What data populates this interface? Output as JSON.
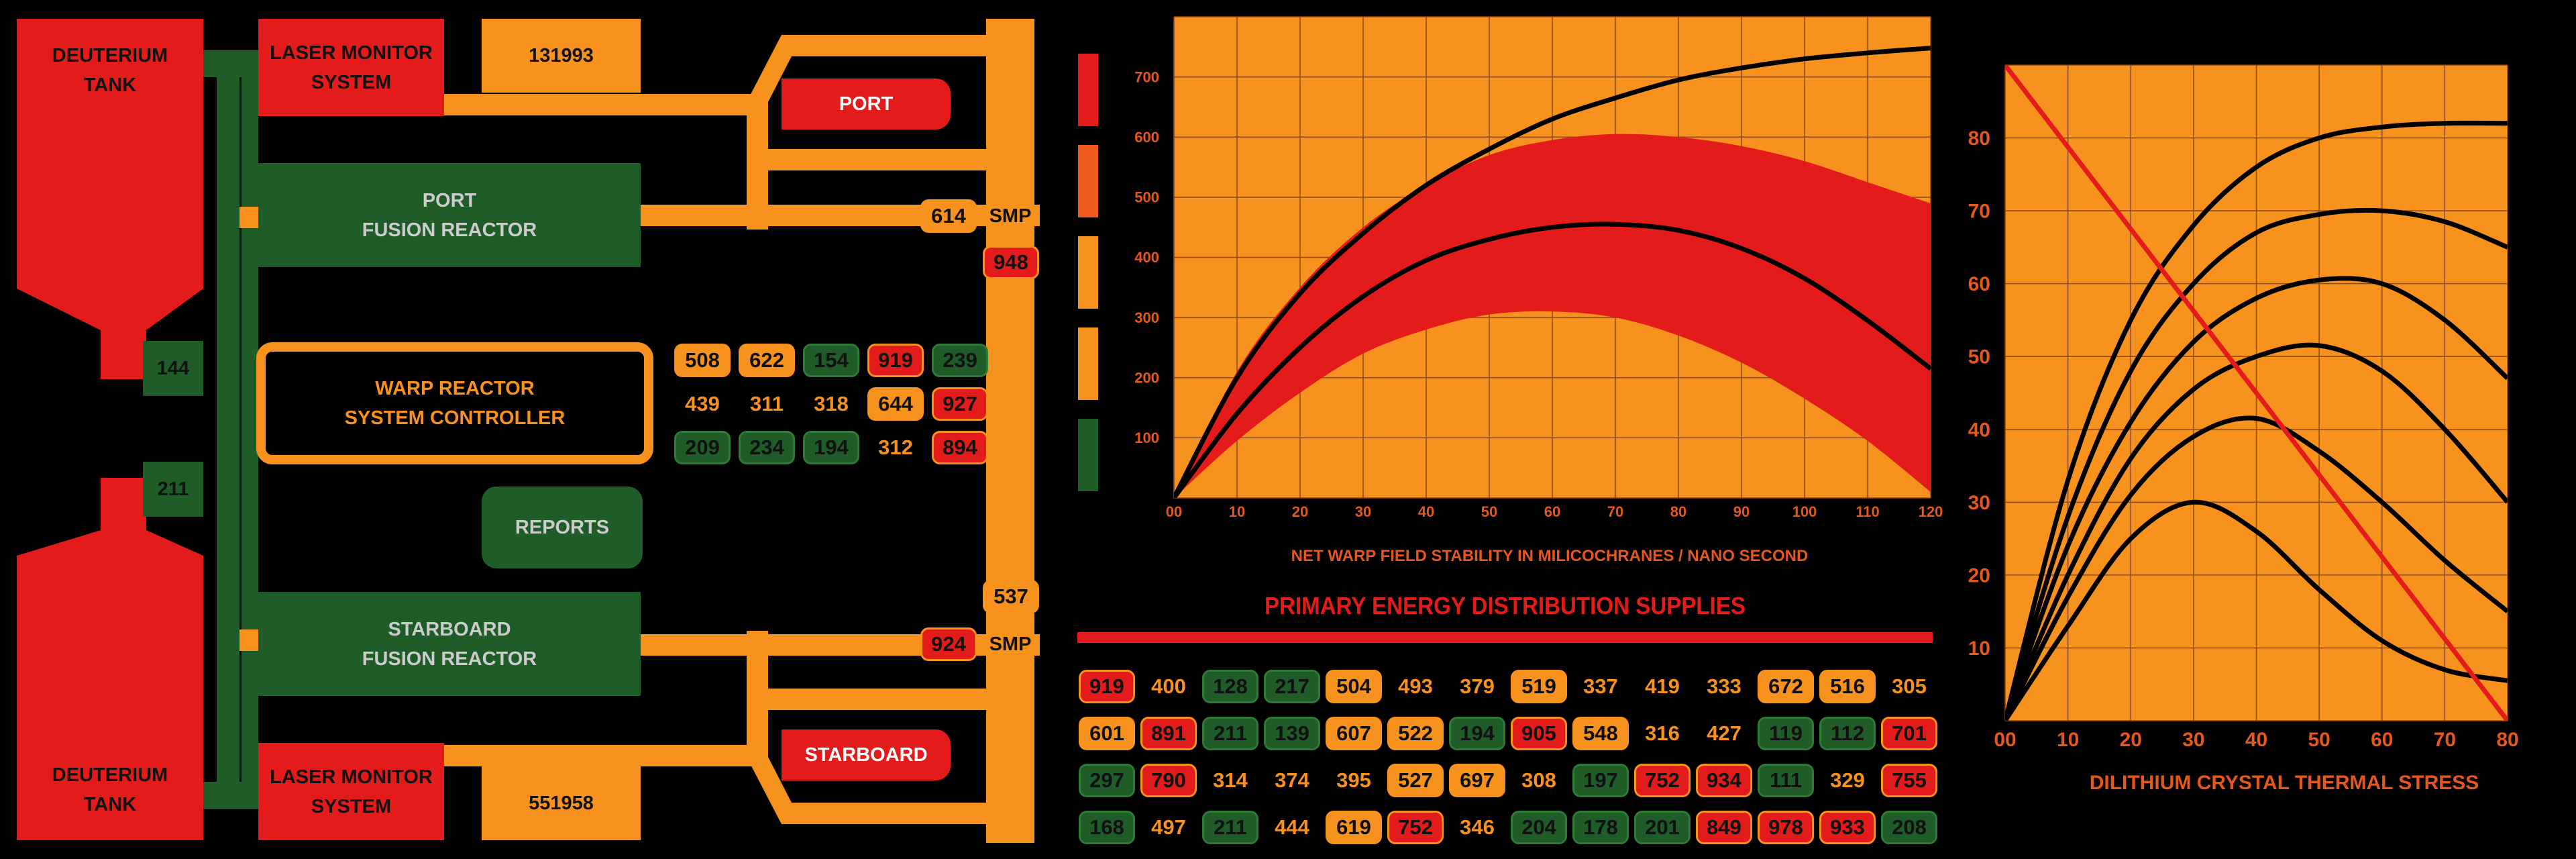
{
  "schematic": {
    "deuterium_top": [
      "DEUTERIUM",
      "TANK"
    ],
    "deuterium_bottom": [
      "DEUTERIUM",
      "TANK"
    ],
    "valve_top": "144",
    "valve_bottom": "211",
    "laser_top": [
      "LASER MONITOR",
      "SYSTEM"
    ],
    "laser_bottom": [
      "LASER MONITOR",
      "SYSTEM"
    ],
    "readout_top": "131993",
    "readout_bottom": "551958",
    "port_reactor": [
      "PORT",
      "FUSION REACTOR"
    ],
    "starboard_reactor": [
      "STARBOARD",
      "FUSION REACTOR"
    ],
    "warp_controller": [
      "WARP REACTOR",
      "SYSTEM CONTROLLER"
    ],
    "reports_button": "REPORTS",
    "port_button": "PORT",
    "starboard_button": "STARBOARD",
    "smp_top": "SMP",
    "smp_bottom": "SMP",
    "smp_top_value": "614",
    "smp_top_alert": "948",
    "smp_bottom_value": "924",
    "smp_bottom_top": "537"
  },
  "status_grid": [
    [
      {
        "v": "508",
        "c": "orange"
      },
      {
        "v": "622",
        "c": "orange"
      },
      {
        "v": "154",
        "c": "green"
      },
      {
        "v": "919",
        "c": "red"
      },
      {
        "v": "239",
        "c": "green"
      }
    ],
    [
      {
        "v": "439",
        "c": "plain"
      },
      {
        "v": "311",
        "c": "plain"
      },
      {
        "v": "318",
        "c": "plain"
      },
      {
        "v": "644",
        "c": "orange"
      },
      {
        "v": "927",
        "c": "red"
      }
    ],
    [
      {
        "v": "209",
        "c": "green"
      },
      {
        "v": "234",
        "c": "green"
      },
      {
        "v": "194",
        "c": "green"
      },
      {
        "v": "312",
        "c": "plain"
      },
      {
        "v": "894",
        "c": "red"
      }
    ]
  ],
  "side_bars": [
    "#e31b1b",
    "#f15a1d",
    "#f7921e",
    "#f7921e",
    "#1f5c27"
  ],
  "chart_data": [
    {
      "type": "line",
      "title": "",
      "xlabel": "NET WARP FIELD STABILITY IN MILICOCHRANES / NANO SECOND",
      "ylabel": "",
      "x_ticks": [
        "00",
        "10",
        "20",
        "30",
        "40",
        "50",
        "60",
        "70",
        "80",
        "90",
        "100",
        "110",
        "120"
      ],
      "y_ticks": [
        "100",
        "200",
        "300",
        "400",
        "500",
        "600",
        "700"
      ],
      "xlim": [
        0,
        120
      ],
      "ylim": [
        0,
        800
      ],
      "grid": true,
      "series": [
        {
          "points": [
            [
              0,
              0
            ],
            [
              10,
              200
            ],
            [
              20,
              340
            ],
            [
              30,
              440
            ],
            [
              40,
              520
            ],
            [
              50,
              580
            ],
            [
              60,
              630
            ],
            [
              70,
              665
            ],
            [
              80,
              695
            ],
            [
              90,
              715
            ],
            [
              100,
              730
            ],
            [
              110,
              740
            ],
            [
              120,
              748
            ]
          ],
          "color": "#000000"
        },
        {
          "points": [
            [
              0,
              0
            ],
            [
              10,
              140
            ],
            [
              20,
              250
            ],
            [
              30,
              335
            ],
            [
              40,
              395
            ],
            [
              50,
              430
            ],
            [
              60,
              450
            ],
            [
              70,
              455
            ],
            [
              80,
              445
            ],
            [
              90,
              415
            ],
            [
              100,
              365
            ],
            [
              110,
              295
            ],
            [
              120,
              215
            ]
          ],
          "color": "#000000"
        }
      ],
      "band": {
        "upper": [
          [
            0,
            0
          ],
          [
            10,
            210
          ],
          [
            20,
            350
          ],
          [
            30,
            450
          ],
          [
            40,
            520
          ],
          [
            50,
            570
          ],
          [
            60,
            595
          ],
          [
            70,
            605
          ],
          [
            80,
            600
          ],
          [
            90,
            585
          ],
          [
            100,
            560
          ],
          [
            110,
            525
          ],
          [
            120,
            490
          ]
        ],
        "lower": [
          [
            0,
            0
          ],
          [
            10,
            95
          ],
          [
            20,
            175
          ],
          [
            30,
            240
          ],
          [
            40,
            280
          ],
          [
            50,
            305
          ],
          [
            60,
            310
          ],
          [
            70,
            300
          ],
          [
            80,
            270
          ],
          [
            90,
            225
          ],
          [
            100,
            165
          ],
          [
            110,
            95
          ],
          [
            120,
            10
          ]
        ],
        "color": "#e31b1b"
      }
    },
    {
      "type": "line",
      "title": "",
      "xlabel": "DILITHIUM CRYSTAL THERMAL STRESS",
      "ylabel": "",
      "x_ticks": [
        "00",
        "10",
        "20",
        "30",
        "40",
        "50",
        "60",
        "70",
        "80"
      ],
      "y_ticks": [
        "10",
        "20",
        "30",
        "40",
        "50",
        "60",
        "70",
        "80"
      ],
      "xlim": [
        0,
        80
      ],
      "ylim": [
        0,
        90
      ],
      "grid": true,
      "series": [
        {
          "points": [
            [
              0,
              0
            ],
            [
              10,
              33
            ],
            [
              20,
              55
            ],
            [
              30,
              68
            ],
            [
              40,
              76
            ],
            [
              50,
              80
            ],
            [
              60,
              81.5
            ],
            [
              70,
              82
            ],
            [
              80,
              82
            ]
          ],
          "color": "#000000"
        },
        {
          "points": [
            [
              0,
              0
            ],
            [
              10,
              28
            ],
            [
              20,
              48
            ],
            [
              30,
              60
            ],
            [
              40,
              67
            ],
            [
              50,
              69.5
            ],
            [
              60,
              70
            ],
            [
              70,
              68.5
            ],
            [
              80,
              65
            ]
          ],
          "color": "#000000"
        },
        {
          "points": [
            [
              0,
              0
            ],
            [
              10,
              24
            ],
            [
              20,
              41
            ],
            [
              30,
              52
            ],
            [
              40,
              58
            ],
            [
              50,
              60.5
            ],
            [
              60,
              60
            ],
            [
              70,
              55
            ],
            [
              80,
              47
            ]
          ],
          "color": "#000000"
        },
        {
          "points": [
            [
              0,
              0
            ],
            [
              10,
              20
            ],
            [
              20,
              36
            ],
            [
              30,
              45.5
            ],
            [
              40,
              50
            ],
            [
              50,
              51.5
            ],
            [
              60,
              48
            ],
            [
              70,
              40
            ],
            [
              80,
              30
            ]
          ],
          "color": "#000000"
        },
        {
          "points": [
            [
              0,
              0
            ],
            [
              10,
              17
            ],
            [
              20,
              31
            ],
            [
              30,
              39
            ],
            [
              40,
              41.5
            ],
            [
              50,
              37
            ],
            [
              60,
              30
            ],
            [
              70,
              22
            ],
            [
              80,
              15
            ]
          ],
          "color": "#000000"
        },
        {
          "points": [
            [
              0,
              0
            ],
            [
              10,
              13
            ],
            [
              20,
              25
            ],
            [
              30,
              30
            ],
            [
              40,
              26
            ],
            [
              50,
              18
            ],
            [
              60,
              11
            ],
            [
              70,
              7
            ],
            [
              80,
              5.5
            ]
          ],
          "color": "#000000"
        },
        {
          "points": [
            [
              0,
              90
            ],
            [
              80,
              0
            ]
          ],
          "color": "#e31b1b"
        }
      ]
    }
  ],
  "energy_panel": {
    "title": "PRIMARY ENERGY DISTRIBUTION SUPPLIES",
    "rows": [
      [
        {
          "v": "919",
          "c": "red"
        },
        {
          "v": "400",
          "c": "plain"
        },
        {
          "v": "128",
          "c": "green"
        },
        {
          "v": "217",
          "c": "green"
        },
        {
          "v": "504",
          "c": "orange"
        },
        {
          "v": "493",
          "c": "plain"
        },
        {
          "v": "379",
          "c": "plain"
        },
        {
          "v": "519",
          "c": "orange"
        },
        {
          "v": "337",
          "c": "plain"
        },
        {
          "v": "419",
          "c": "plain"
        },
        {
          "v": "333",
          "c": "plain"
        },
        {
          "v": "672",
          "c": "orange"
        },
        {
          "v": "516",
          "c": "orange"
        },
        {
          "v": "305",
          "c": "plain"
        }
      ],
      [
        {
          "v": "601",
          "c": "orange"
        },
        {
          "v": "891",
          "c": "red"
        },
        {
          "v": "211",
          "c": "green"
        },
        {
          "v": "139",
          "c": "green"
        },
        {
          "v": "607",
          "c": "orange"
        },
        {
          "v": "522",
          "c": "orange"
        },
        {
          "v": "194",
          "c": "green"
        },
        {
          "v": "905",
          "c": "red"
        },
        {
          "v": "548",
          "c": "orange"
        },
        {
          "v": "316",
          "c": "plain"
        },
        {
          "v": "427",
          "c": "plain"
        },
        {
          "v": "119",
          "c": "green"
        },
        {
          "v": "112",
          "c": "green"
        },
        {
          "v": "701",
          "c": "red"
        }
      ],
      [
        {
          "v": "297",
          "c": "green"
        },
        {
          "v": "790",
          "c": "red"
        },
        {
          "v": "314",
          "c": "plain"
        },
        {
          "v": "374",
          "c": "plain"
        },
        {
          "v": "395",
          "c": "plain"
        },
        {
          "v": "527",
          "c": "orange"
        },
        {
          "v": "697",
          "c": "orange"
        },
        {
          "v": "308",
          "c": "plain"
        },
        {
          "v": "197",
          "c": "green"
        },
        {
          "v": "752",
          "c": "red"
        },
        {
          "v": "934",
          "c": "red"
        },
        {
          "v": "111",
          "c": "green"
        },
        {
          "v": "329",
          "c": "plain"
        },
        {
          "v": "755",
          "c": "red"
        }
      ],
      [
        {
          "v": "168",
          "c": "green"
        },
        {
          "v": "497",
          "c": "plain"
        },
        {
          "v": "211",
          "c": "green"
        },
        {
          "v": "444",
          "c": "plain"
        },
        {
          "v": "619",
          "c": "orange"
        },
        {
          "v": "752",
          "c": "red"
        },
        {
          "v": "346",
          "c": "plain"
        },
        {
          "v": "204",
          "c": "green"
        },
        {
          "v": "178",
          "c": "green"
        },
        {
          "v": "201",
          "c": "green"
        },
        {
          "v": "849",
          "c": "red"
        },
        {
          "v": "978",
          "c": "red"
        },
        {
          "v": "933",
          "c": "red"
        },
        {
          "v": "208",
          "c": "green"
        }
      ]
    ]
  }
}
